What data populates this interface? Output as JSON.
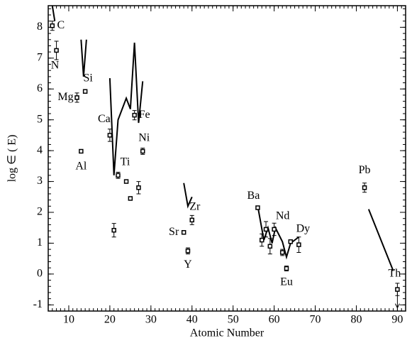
{
  "chart_data": {
    "type": "scatter",
    "xlabel": "Atomic Number",
    "ylabel": "log ∈ ( E)",
    "xlim": [
      5,
      92
    ],
    "ylim": [
      -1.2,
      8.7
    ],
    "xticks": [
      10,
      20,
      30,
      40,
      50,
      60,
      70,
      80,
      90
    ],
    "yticks": [
      -1,
      0,
      1,
      2,
      3,
      4,
      5,
      6,
      7,
      8
    ],
    "points": {
      "color": "#000000",
      "x": [
        6,
        7,
        12,
        13,
        14,
        20,
        21,
        22,
        24,
        25,
        26,
        27,
        28,
        38,
        39,
        40,
        56,
        57,
        58,
        59,
        60,
        62,
        63,
        64,
        66,
        82,
        90
      ],
      "values": [
        8.05,
        7.25,
        5.72,
        3.98,
        5.92,
        4.5,
        1.42,
        3.2,
        3.0,
        2.45,
        5.15,
        2.8,
        3.98,
        1.35,
        0.75,
        1.75,
        2.15,
        1.1,
        1.45,
        0.9,
        1.45,
        0.7,
        0.18,
        1.05,
        0.95,
        2.8,
        -0.5
      ],
      "errors": [
        0.15,
        0.3,
        0.15,
        null,
        null,
        0.2,
        0.22,
        0.1,
        null,
        null,
        0.15,
        0.2,
        0.1,
        null,
        0.1,
        0.15,
        null,
        0.2,
        0.25,
        0.25,
        0.2,
        0.1,
        0.08,
        null,
        0.25,
        0.15,
        0.2
      ],
      "labels": [
        "C",
        "N",
        "Mg",
        "Al",
        "Si",
        "Ca",
        null,
        "Ti",
        null,
        null,
        "Fe",
        null,
        "Ni",
        "Sr",
        "Y",
        "Zr",
        "Ba",
        null,
        null,
        null,
        "Nd",
        null,
        "Eu",
        null,
        "Dy",
        "Pb",
        "Th"
      ],
      "upper_limits": [
        26
      ]
    },
    "model": {
      "color": "#000000",
      "x": [
        6,
        6.6,
        null,
        13,
        13.6,
        14.3,
        null,
        20,
        21,
        22,
        24,
        25,
        26,
        27,
        28,
        null,
        38,
        39,
        40,
        null,
        56,
        57.5,
        58.5,
        59.5,
        60.3,
        62,
        63,
        64,
        66,
        null,
        83,
        89
      ],
      "values": [
        8.7,
        8.2,
        null,
        7.6,
        6.4,
        7.6,
        null,
        6.35,
        3.2,
        5.0,
        5.7,
        5.35,
        7.5,
        4.9,
        6.25,
        null,
        2.95,
        2.2,
        2.5,
        null,
        2.2,
        1.1,
        1.5,
        1.0,
        1.5,
        1.05,
        0.55,
        1.0,
        1.2,
        null,
        2.1,
        0.1
      ]
    }
  }
}
